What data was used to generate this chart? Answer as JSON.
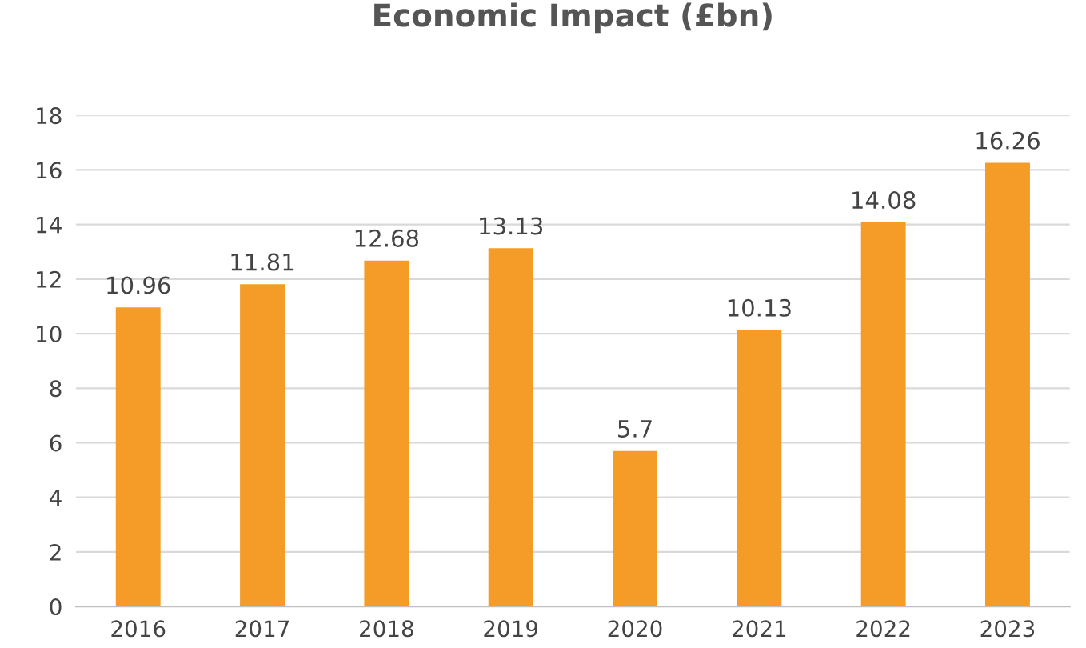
{
  "chart_data": {
    "type": "bar",
    "title": "Economic Impact (£bn)",
    "categories": [
      "2016",
      "2017",
      "2018",
      "2019",
      "2020",
      "2021",
      "2022",
      "2023"
    ],
    "values": [
      10.96,
      11.81,
      12.68,
      13.13,
      5.7,
      10.13,
      14.08,
      16.26
    ],
    "color": "#f59c28",
    "ylim": [
      0,
      18
    ],
    "yticks": [
      0,
      2,
      4,
      6,
      8,
      10,
      12,
      14,
      16,
      18
    ],
    "grid": "y",
    "data_labels": true
  }
}
